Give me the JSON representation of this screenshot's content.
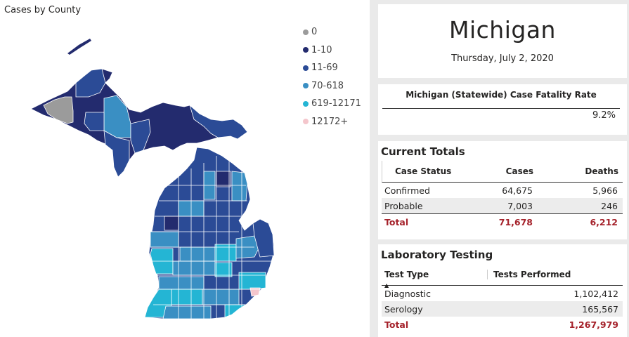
{
  "map": {
    "title": "Cases by County",
    "legend": [
      {
        "label": "0",
        "color": "#9b9b9b"
      },
      {
        "label": "1-10",
        "color": "#232b6e"
      },
      {
        "label": "11-69",
        "color": "#2b4b96"
      },
      {
        "label": "70-618",
        "color": "#3a8fc3"
      },
      {
        "label": "619-12171",
        "color": "#24b5d4"
      },
      {
        "label": "12172+",
        "color": "#f4c6cc"
      }
    ]
  },
  "header": {
    "state": "Michigan",
    "date": "Thursday, July 2, 2020"
  },
  "cfr": {
    "title": "Michigan (Statewide) Case Fatality Rate",
    "value": "9.2%"
  },
  "totals": {
    "title": "Current Totals",
    "columns": [
      "Case Status",
      "Cases",
      "Deaths"
    ],
    "rows": [
      {
        "status": "Confirmed",
        "cases": "64,675",
        "deaths": "5,966"
      },
      {
        "status": "Probable",
        "cases": "7,003",
        "deaths": "246"
      }
    ],
    "total": {
      "status": "Total",
      "cases": "71,678",
      "deaths": "6,212"
    }
  },
  "lab": {
    "title": "Laboratory Testing",
    "columns": [
      "Test Type",
      "Tests Performed"
    ],
    "rows": [
      {
        "type": "Diagnostic",
        "tests": "1,102,412"
      },
      {
        "type": "Serology",
        "tests": "165,567"
      }
    ],
    "total": {
      "type": "Total",
      "tests": "1,267,979"
    }
  }
}
